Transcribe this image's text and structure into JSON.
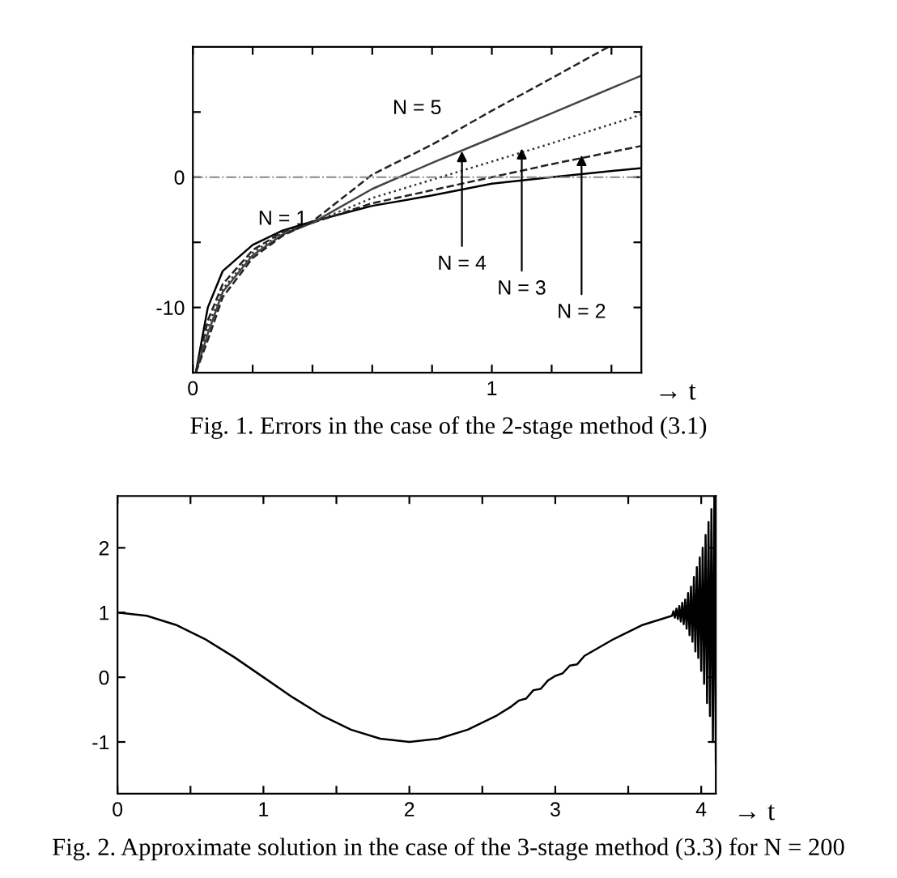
{
  "chart_data": [
    {
      "type": "line",
      "xlabel": "→ t",
      "xlim": [
        0,
        1.5
      ],
      "ylim": [
        -15,
        10
      ],
      "xticks": [
        0,
        {
          "value": 0.2,
          "label": null
        },
        {
          "value": 0.4,
          "label": null
        },
        {
          "value": 0.6,
          "label": null
        },
        {
          "value": 0.8,
          "label": null
        },
        1,
        {
          "value": 1.2,
          "label": null
        },
        {
          "value": 1.4,
          "label": null
        }
      ],
      "yticks": [
        -10,
        {
          "value": -5,
          "label": null
        },
        0,
        {
          "value": 5,
          "label": null
        }
      ],
      "x": [
        0.01,
        0.05,
        0.1,
        0.2,
        0.3,
        0.4,
        0.6,
        0.8,
        1.0,
        1.2,
        1.5
      ],
      "series": [
        {
          "name": "N = 1",
          "color": "#000000",
          "line_style": "solid",
          "values": [
            -15,
            -10,
            -7.2,
            -5.2,
            -4.1,
            -3.4,
            -2.2,
            -1.4,
            -0.5,
            0,
            0.7
          ]
        },
        {
          "color": "#222222",
          "line_style": "dashed",
          "values": [
            -15,
            -11,
            -8.2,
            -5.6,
            -4.2,
            -3.5,
            -2.0,
            -1.0,
            0,
            1.0,
            2.4
          ]
        },
        {
          "color": "#333333",
          "line_style": "dotted",
          "values": [
            -15,
            -11.5,
            -8.6,
            -5.8,
            -4.3,
            -3.5,
            -1.6,
            -0.2,
            1.2,
            2.6,
            4.8
          ]
        },
        {
          "color": "#444444",
          "line_style": "solid",
          "values": [
            -15,
            -12,
            -8.8,
            -6,
            -4.4,
            -3.5,
            -0.9,
            1.1,
            3.0,
            4.9,
            7.8
          ]
        },
        {
          "name": "N = 5",
          "color": "#222222",
          "line_style": "dashed",
          "x": [
            0.01,
            0.05,
            0.1,
            0.2,
            0.3,
            0.4,
            0.6,
            0.8,
            1.0,
            1.2,
            1.39
          ],
          "values": [
            -15,
            -12.5,
            -9.2,
            -6.2,
            -4.5,
            -3.4,
            0.2,
            2.5,
            5.1,
            7.6,
            10
          ]
        }
      ],
      "ref_lines": [
        {
          "axis": "y",
          "value": 0,
          "color": "#888888",
          "line_style": "dashdot"
        }
      ],
      "annotations": [
        {
          "text": "N = 4",
          "x": 0.9,
          "y": 2.0
        },
        {
          "text": "N = 3",
          "x": 1.1,
          "y": 2.2
        },
        {
          "text": "N = 2",
          "x": 1.3,
          "y": 1.7
        },
        "Fig. 1. Errors in the case of the 2-stage method (3.1)"
      ],
      "grid": false
    },
    {
      "type": "line",
      "xlabel": "→ t",
      "xlim": [
        0,
        4.1
      ],
      "ylim": [
        -1.8,
        2.8
      ],
      "xticks": [
        0,
        {
          "value": 0.5,
          "label": null
        },
        1,
        {
          "value": 1.5,
          "label": null
        },
        2,
        {
          "value": 2.5,
          "label": null
        },
        3,
        {
          "value": 3.5,
          "label": null
        },
        4
      ],
      "yticks": [
        -1,
        0,
        1,
        2
      ],
      "series": [
        {
          "color": "#000000",
          "line_style": "solid",
          "x": [
            0,
            0.2,
            0.4,
            0.6,
            0.8,
            1.0,
            1.2,
            1.4,
            1.6,
            1.8,
            2.0,
            2.2,
            2.4,
            2.6,
            2.7,
            2.75,
            2.8,
            2.85,
            2.9,
            2.95,
            3.0,
            3.05,
            3.1,
            3.15,
            3.2,
            3.4,
            3.6,
            3.8,
            3.81,
            3.82,
            3.83,
            3.84,
            3.85,
            3.86,
            3.87,
            3.88,
            3.89,
            3.9,
            3.91,
            3.92,
            3.93,
            3.94,
            3.95,
            3.96,
            3.97,
            3.98,
            3.99,
            4.0,
            4.01,
            4.02,
            4.03,
            4.04,
            4.05,
            4.06,
            4.07,
            4.08,
            4.09,
            4.1
          ],
          "values": [
            1,
            0.95,
            0.81,
            0.59,
            0.31,
            0,
            -0.31,
            -0.59,
            -0.81,
            -0.95,
            -1,
            -0.95,
            -0.81,
            -0.59,
            -0.45,
            -0.36,
            -0.33,
            -0.2,
            -0.18,
            -0.05,
            0.02,
            0.06,
            0.18,
            0.2,
            0.33,
            0.59,
            0.81,
            0.95,
            1.02,
            0.92,
            1.06,
            0.9,
            1.1,
            0.86,
            1.15,
            0.82,
            1.2,
            0.75,
            1.3,
            0.65,
            1.4,
            0.55,
            1.55,
            0.4,
            1.7,
            0.3,
            1.85,
            0.1,
            2.0,
            -0.1,
            2.2,
            -0.4,
            2.4,
            -0.6,
            2.6,
            -1.0,
            2.8,
            -1.33
          ]
        }
      ],
      "annotations": [
        "Fig. 2. Approximate solution in the case of the 3-stage method (3.3) for N = 200"
      ],
      "grid": false
    }
  ]
}
